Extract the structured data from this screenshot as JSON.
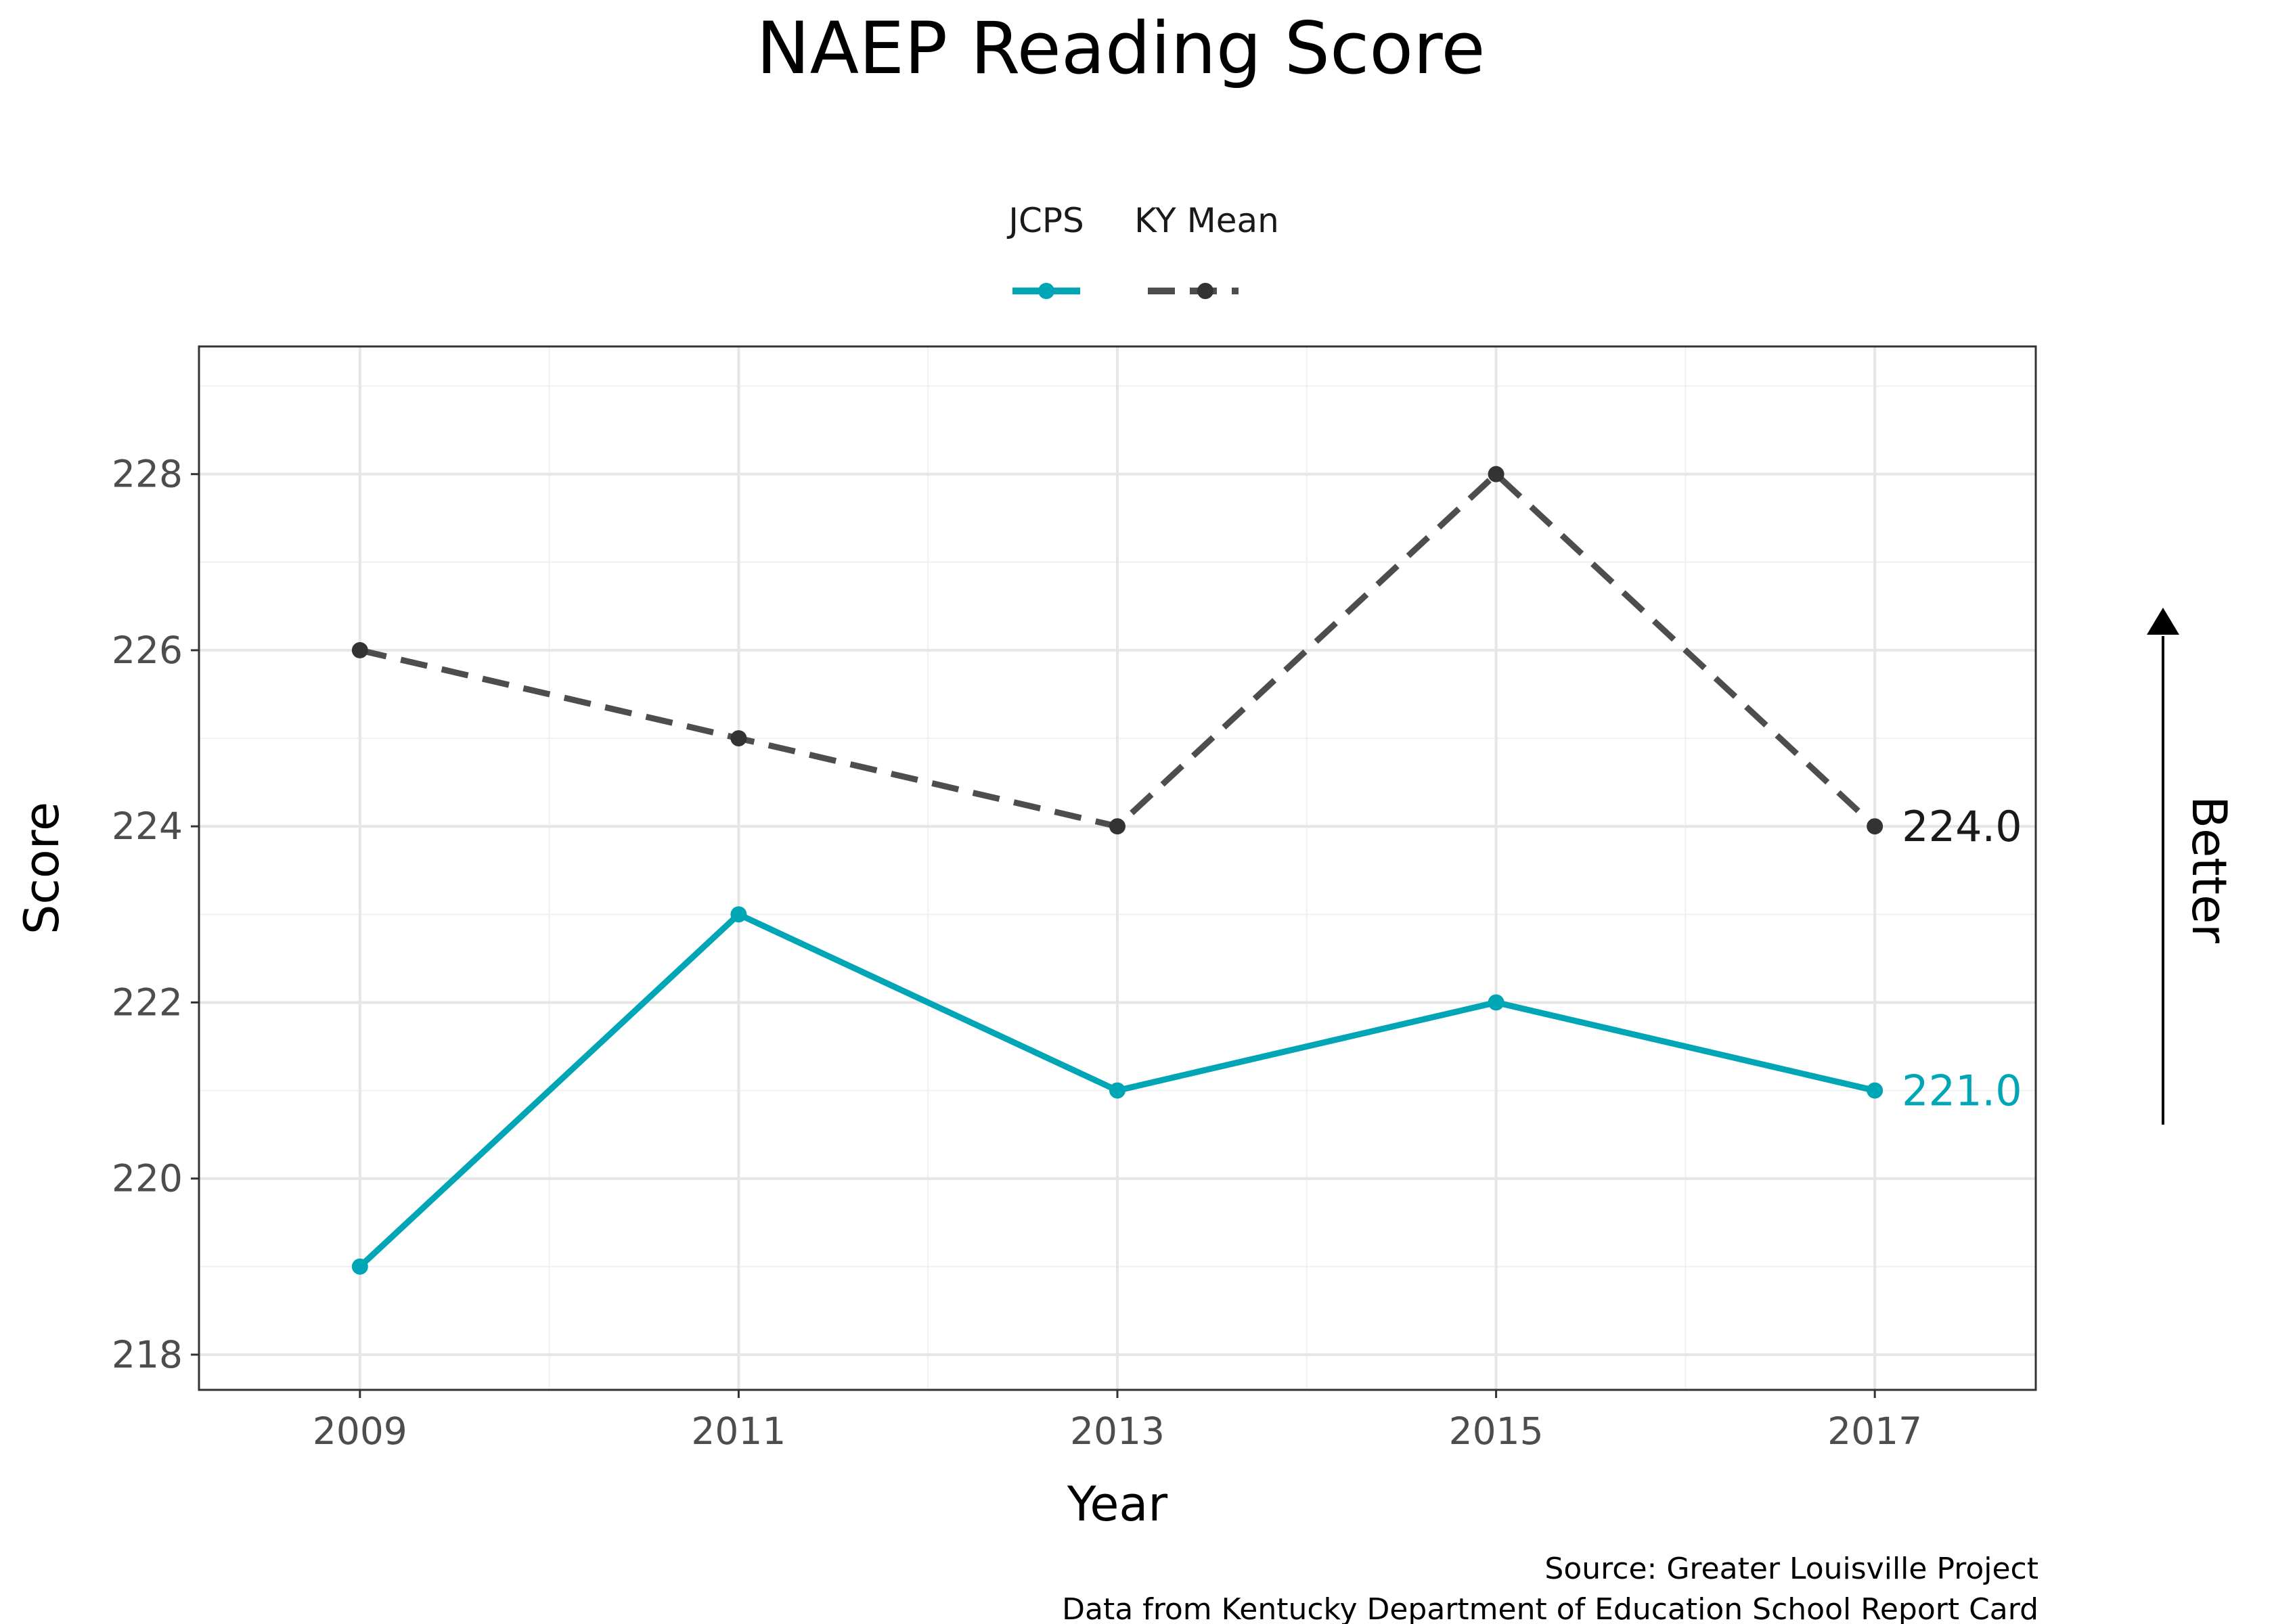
{
  "chart_data": {
    "type": "line",
    "title": "NAEP Reading Score",
    "xlabel": "Year",
    "ylabel": "Score",
    "x": [
      2009,
      2011,
      2013,
      2015,
      2017
    ],
    "xlim": [
      2008.15,
      2017.85
    ],
    "ylim": [
      217.6,
      229.45
    ],
    "x_ticks": [
      "2009",
      "2011",
      "2013",
      "2015",
      "2017"
    ],
    "y_ticks": [
      "218",
      "220",
      "222",
      "224",
      "226",
      "228"
    ],
    "grid": true,
    "legend_position": "top",
    "series": [
      {
        "name": "JCPS",
        "values": [
          219,
          223,
          221,
          222,
          221
        ],
        "color": "#00a6b5",
        "style": "solid",
        "end_label": "221.0"
      },
      {
        "name": "KY Mean",
        "values": [
          226,
          225,
          224,
          228,
          224
        ],
        "color": "#4d4d4d",
        "style": "dashed",
        "end_label": "224.0"
      }
    ],
    "annotation": "Better",
    "caption": [
      "Source: Greater Louisville Project",
      "Data from Kentucky Department of Education School Report Card"
    ]
  }
}
